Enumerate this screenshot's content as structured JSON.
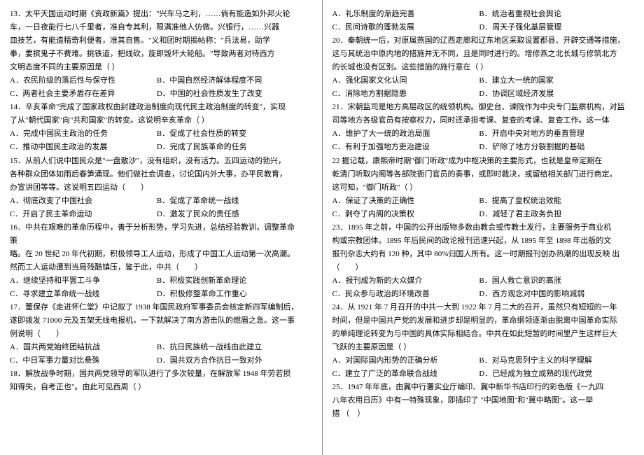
{
  "left": {
    "q13": {
      "stem_l1": "13．太平天国运动时期《资政新篇》提出：\"兴车马之利，……倘有能造如外邦火轮",
      "stem_l2": "车，一日夜能行七八千里者，准自专其利，限满准他人仿做。兴银行，……兴器",
      "stem_l3": "皿技艺，有能造精奇利便者，准其自售。\"义和团时期揭帖称：\"兵法易，助学",
      "stem_l4": "拳，要摈鬼子不费难。挑铁道，把线砍，旋即毁坏大轮船。\"导致两者对待西方",
      "stem_l5": "文明态度不同的主要原因是（ ）",
      "a": "A．农民阶级的落后性与保守性",
      "b": "B．中国自然经济解体程度不同",
      "c": "C．两者社会主要矛盾存在差异",
      "d": "D．中国的社会性质发生了改变"
    },
    "q14": {
      "stem_l1": "14．辛亥革命\"完成了国家政权由封建政治制度向现代民主政治制度的转变\"，实现",
      "stem_l2": "了从\"朝代国家\"向\"共和国家\"的转变。这说明辛亥革命（ ）",
      "a": "A．完成中国民主政治的任务",
      "b": "B．促成了社会性质的转变",
      "c": "C．推动中国民主政治的发展",
      "d": "D．完成了民族革命的任务"
    },
    "q15": {
      "stem_l1": "15．从前人们说中国民众是\"一盘散沙\"，没有组织，没有活力。五四运动的勃兴，",
      "stem_l2": "各种群众团体如雨后春笋涌现。他们做社会调查，讨论国内外大事，办平民教育，",
      "stem_l3": "办宣讲团等等。这说明五四运动（　　）",
      "a": "A．彻底改变了中国社会",
      "b": "B．促成了革命统一战线",
      "c": "C．开启了民主革命运动",
      "d": "D．激发了民众的责任感"
    },
    "q16": {
      "stem_l1": "16．中共在艰难的革命历程中，善于分析形势，学习先进，总结经验教训，调整革命",
      "stem_l2": "策",
      "stem_l3": "略。在 20 世纪 20 年代初期，积极领导工人运动，形成了中国工人运动第一次高潮。",
      "stem_l4": "然而工人运动遭到当局残酷镇压，鉴于此，中共（　　）",
      "a": "A．继续坚持和平罢工斗争",
      "b": "B．积极实践创新革命理论",
      "c": "C．寻求建立革命统一战线",
      "d": "D．积极修整革命工作重心"
    },
    "q17": {
      "stem_l1": "17．董保存《走进怀仁堂》中记叙了 1938 年国民政府军事委员会核定新四军编制后，",
      "stem_l2": "遂即拨发 71000 元及五架无线电报机，一下就解决了南方游击队的燃眉之急。这一事",
      "stem_l3": "例说明（　　）",
      "a": "A．国共两党始终团结抗战",
      "b": "B．抗日民族统一战线由此建立",
      "c": "C．中日军事力量对比悬殊",
      "d": "D．国共双方合作抗日一致对外"
    },
    "q18": {
      "stem_l1": "18．解放战争时期，国共两党领导的军队进行了多次较量，在解放军 1948 年劳若损",
      "stem_l2": "知得失，自考正也\"。由此可见西周（ ）"
    }
  },
  "right": {
    "q18c": {
      "a": "A．礼乐制度的渐趋完善",
      "b": "B．统治者重视社会舆论",
      "c": "C．民间诗歌的蓬勃发展",
      "d": "D．周天子强化基层管理"
    },
    "q20": {
      "stem_l1": "20．秦朝统一后，对原属燕国的辽西走廊和辽东地区采取设置郡县、开辟交通等措施，",
      "stem_l2": "这与其统治中原内地的措施并无不同，且是同时进行的。增修燕之北长城与修筑北方",
      "stem_l3": "的长城也没有区别。这些措施的施行意在（ ）",
      "a": "A．强化国家文化认同",
      "b": "B．建立大一统的国家",
      "c": "C．消除地方割据隐患",
      "d": "D．协调区域经济发展"
    },
    "q21": {
      "stem_l1": "21．宋朝监司是地方高层政区的统领机构。御史台、谏院作为中央专门监察机构，对监",
      "stem_l2": "司等地方各级官员有按察权力，同时还承担考课、复查的考课、复查工作。这一体",
      "a": "A．维护了大一统的政治局面",
      "b": "B．开启中央对地方的垂直管理",
      "c": "C．有利于加强地方吏治建设",
      "d": "D．铲除了地方分裂割据的基础"
    },
    "q22": {
      "stem_l1": "22 据记载，康熙帝时期\"御门听政\"成为中枢决策的主要形式，也就是皇帝定期在",
      "stem_l2": "乾清门听取内阁等各部院衙门官员的奏事，或即时裁决，或留给相关部门进行商定。",
      "stem_l3": "这可知，\"御门听政\"（ ）",
      "a": "A．保证了决策的正确性",
      "b": "B．提高了皇权统治效能",
      "c": "C．剥夺了内阁的决策权",
      "d": "D．减轻了君主政务负担"
    },
    "q23": {
      "stem_l1": "23．1895 年之前，中国的公开出版物多数由教会或传教士发行，主要服务于商业机",
      "stem_l2": "构或宗教团体。1895 年后民间的政论报刊迅速兴起，从 1895 年至 1898 年出版的文",
      "stem_l3": "报刊杂志大约有 120 种，其中 80%归国人所有。这一时期报刊创办热潮的出现反映 出",
      "stem_l4": "（　　）",
      "a": "A．报刊成为新的大众媒介",
      "b": "B．国人救亡意识的高涨",
      "c": "C．民众参与政治的环境改善",
      "d": "D．西方观念对中国的影响减弱"
    },
    "q24": {
      "stem_l1": "24．从 1921 年 7 月召开的中共一大到 1922 年 7 月二大的召开，虽然只有短短的一年",
      "stem_l2": "时间，但是中国共产党的发展和进步却是明显的，革命纲领逐渐由脱离中国革命实际",
      "stem_l3": "的单纯理论转变为与中国的具体实际相结合。中共在如此短暂的时间里产生这样巨大",
      "stem_l4": "飞跃的主要原因是（ ）",
      "a": "A．对国际国内形势的正确分析",
      "b": "B．对马克思列宁主义的科学理解",
      "c": "C．建立了广泛的革命联合战线",
      "d": "D．已经成为独立成熟的现代政党"
    },
    "q25": {
      "stem_l1": "25．1947 年年底，由冀中行署实业厅编印、冀中新华书店印行的彩色版《一九四",
      "stem_l2": "八年农用日历》中有一特殊现象，即插印了 \"中国地图\"和\"冀中略图\"。这一举",
      "stem_l3": "措 （　）"
    }
  }
}
